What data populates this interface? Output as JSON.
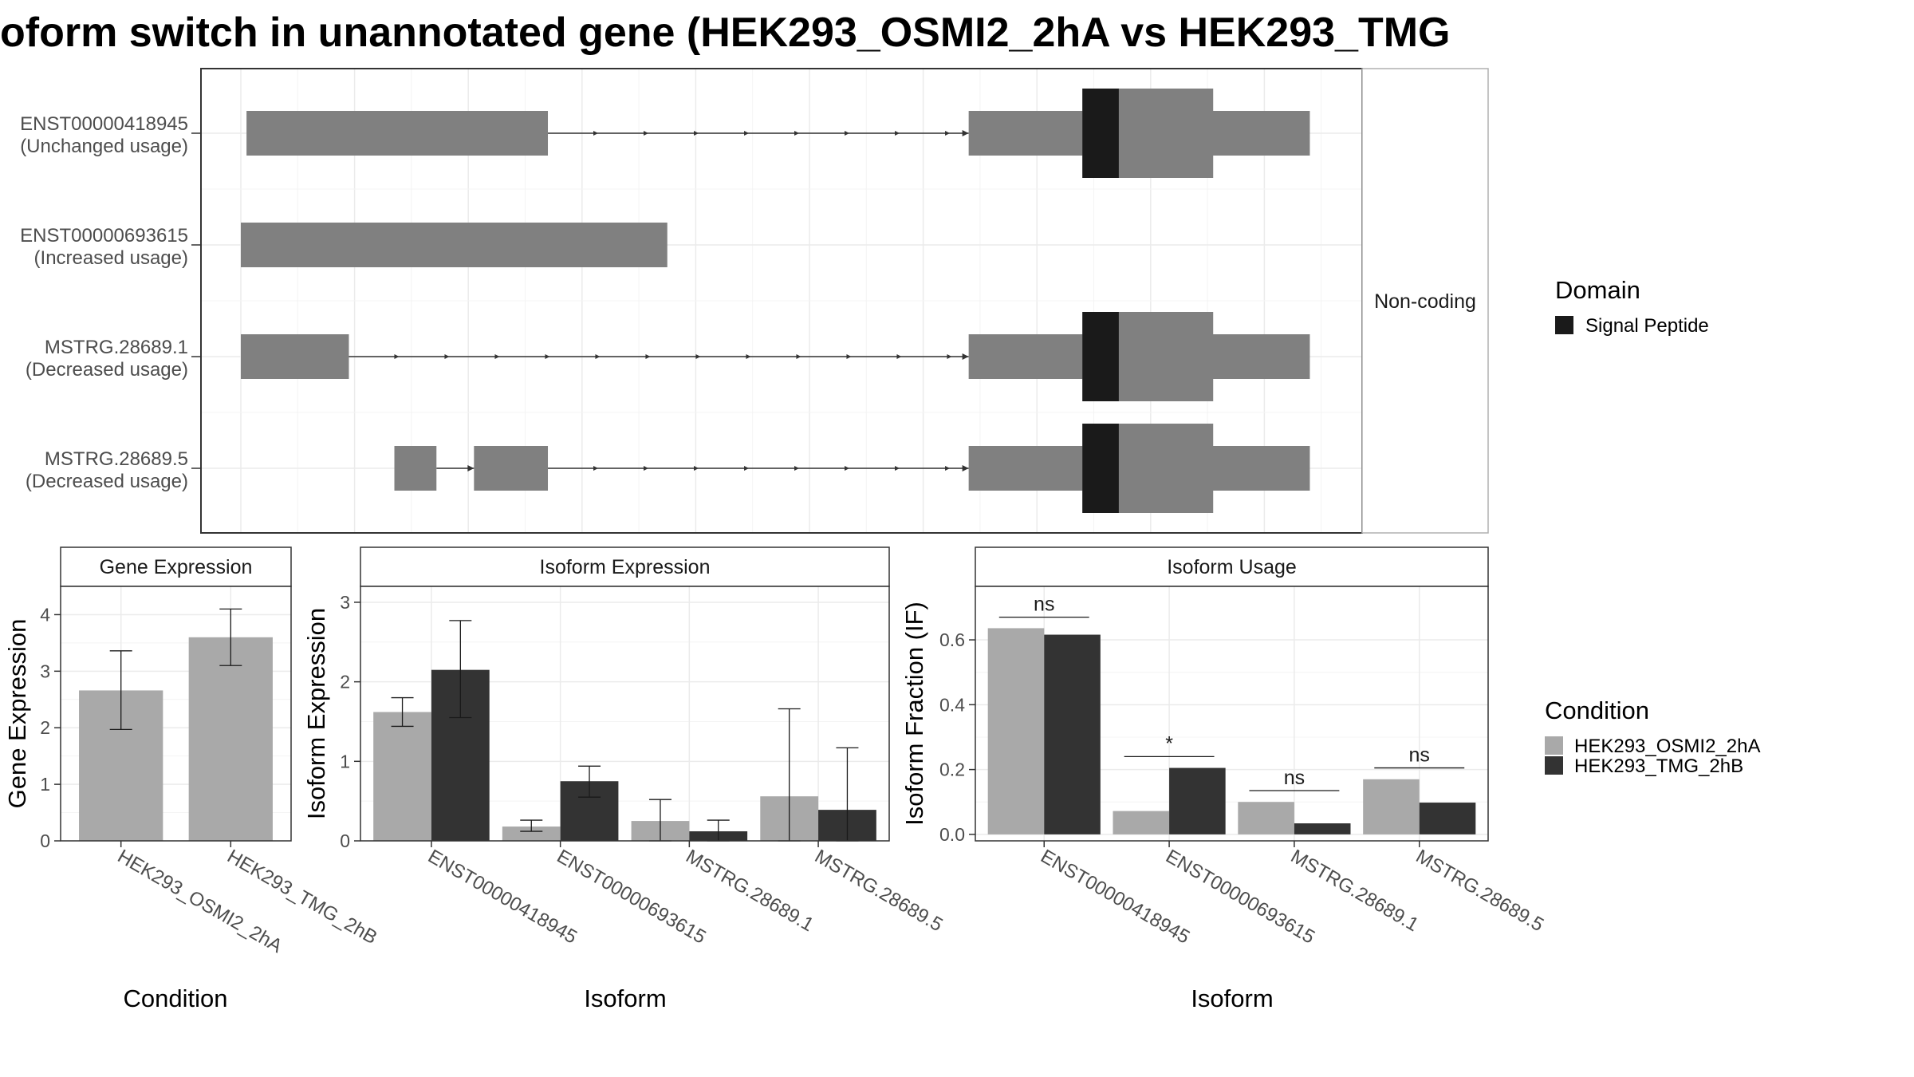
{
  "title": "oform switch in unannotated gene (HEK293_OSMI2_2hA vs HEK293_TMG",
  "colors": {
    "condA": "#a9a9a9",
    "condB": "#333333",
    "exon": "#808080",
    "signal_peptide": "#1a1a1a",
    "panel_bg": "#ffffff",
    "grid": "#ebebeb",
    "panel_border": "#333333",
    "strip_border": "#b0b0b0"
  },
  "chart_data": [
    {
      "type": "gene-structure",
      "facet_label": "Non-coding",
      "legend": {
        "title": "Domain",
        "entries": [
          "Signal Peptide"
        ]
      },
      "transcripts": [
        {
          "name": "ENST00000418945",
          "usage": "(Unchanged usage)",
          "exons": [
            [
              0.05,
              2.7
            ],
            [
              6.4,
              9.4
            ]
          ],
          "cds": [
            7.4,
            8.55
          ],
          "signal_peptide": [
            7.4,
            7.72
          ],
          "introns": [
            [
              2.7,
              6.4
            ]
          ]
        },
        {
          "name": "ENST00000693615",
          "usage": "(Increased usage)",
          "exons": [
            [
              0,
              3.75
            ]
          ],
          "introns": []
        },
        {
          "name": "MSTRG.28689.1",
          "usage": "(Decreased usage)",
          "exons": [
            [
              0,
              0.95
            ],
            [
              6.4,
              9.4
            ]
          ],
          "cds": [
            7.4,
            8.55
          ],
          "signal_peptide": [
            7.4,
            7.72
          ],
          "introns": [
            [
              0.95,
              6.4
            ]
          ]
        },
        {
          "name": "MSTRG.28689.5",
          "usage": "(Decreased usage)",
          "exons": [
            [
              1.35,
              1.72
            ],
            [
              2.05,
              2.7
            ],
            [
              6.4,
              9.4
            ]
          ],
          "cds": [
            7.4,
            8.55
          ],
          "signal_peptide": [
            7.4,
            7.72
          ],
          "introns": [
            [
              1.72,
              2.05
            ],
            [
              2.7,
              6.4
            ]
          ]
        }
      ]
    },
    {
      "type": "bar",
      "title": "Gene Expression",
      "xlabel": "Condition",
      "ylabel": "Gene Expression",
      "ylim": [
        0,
        4.5
      ],
      "yticks": [
        0,
        1,
        2,
        3,
        4
      ],
      "categories": [
        "HEK293_OSMI2_2hA",
        "HEK293_TMG_2hB"
      ],
      "values": [
        2.66,
        3.6
      ],
      "error": [
        [
          1.97,
          3.36
        ],
        [
          3.1,
          4.1
        ]
      ]
    },
    {
      "type": "bar",
      "title": "Isoform Expression",
      "xlabel": "Isoform",
      "ylabel": "Isoform Expression",
      "ylim": [
        0,
        3.2
      ],
      "yticks": [
        0,
        1,
        2,
        3
      ],
      "categories": [
        "ENST00000418945",
        "ENST00000693615",
        "MSTRG.28689.1",
        "MSTRG.28689.5"
      ],
      "series": [
        {
          "name": "HEK293_OSMI2_2hA",
          "values": [
            1.62,
            0.18,
            0.25,
            0.56
          ],
          "error": [
            [
              1.44,
              1.8
            ],
            [
              0.12,
              0.26
            ],
            [
              0.0,
              0.52
            ],
            [
              0.0,
              1.66
            ]
          ]
        },
        {
          "name": "HEK293_TMG_2hB",
          "values": [
            2.15,
            0.75,
            0.12,
            0.39
          ],
          "error": [
            [
              1.55,
              2.77
            ],
            [
              0.55,
              0.94
            ],
            [
              0.0,
              0.26
            ],
            [
              0.0,
              1.17
            ]
          ]
        }
      ]
    },
    {
      "type": "bar",
      "title": "Isoform Usage",
      "xlabel": "Isoform",
      "ylabel": "Isoform Fraction (IF)",
      "ylim": [
        -0.02,
        0.765
      ],
      "yticks": [
        0.0,
        0.2,
        0.4,
        0.6
      ],
      "ytick_labels": [
        "0.0",
        "0.2",
        "0.4",
        "0.6"
      ],
      "categories": [
        "ENST00000418945",
        "ENST00000693615",
        "MSTRG.28689.1",
        "MSTRG.28689.5"
      ],
      "series": [
        {
          "name": "HEK293_OSMI2_2hA",
          "values": [
            0.636,
            0.072,
            0.1,
            0.17
          ]
        },
        {
          "name": "HEK293_TMG_2hB",
          "values": [
            0.616,
            0.205,
            0.034,
            0.098
          ]
        }
      ],
      "significance": [
        "ns",
        "*",
        "ns",
        "ns"
      ],
      "significance_y": [
        0.67,
        0.24,
        0.135,
        0.205
      ]
    }
  ],
  "condition_legend": {
    "title": "Condition",
    "entries": [
      "HEK293_OSMI2_2hA",
      "HEK293_TMG_2hB"
    ]
  }
}
